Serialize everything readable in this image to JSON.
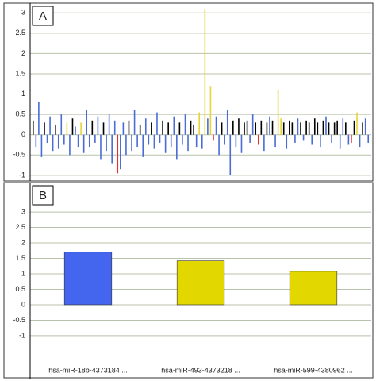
{
  "chart_data": [
    {
      "type": "bar",
      "label": "A",
      "values": [
        0.35,
        -0.3,
        0.8,
        -0.55,
        0.3,
        -0.2,
        0.45,
        -0.4,
        0.25,
        -0.35,
        0.5,
        -0.25,
        0.3,
        -0.5,
        0.4,
        0.2,
        -0.3,
        0.3,
        -0.45,
        0.6,
        -0.3,
        0.35,
        -0.2,
        0.45,
        -0.6,
        0.3,
        -0.4,
        0.5,
        -0.7,
        0.35,
        -0.95,
        -0.85,
        0.3,
        -0.5,
        0.35,
        -0.4,
        0.6,
        -0.3,
        0.25,
        -0.55,
        0.4,
        -0.25,
        0.3,
        -0.35,
        0.55,
        -0.2,
        0.35,
        -0.45,
        0.3,
        -0.3,
        0.45,
        -0.6,
        0.3,
        -0.25,
        0.5,
        -0.4,
        0.35,
        0.25,
        -0.3,
        0.55,
        -0.35,
        3.1,
        0.4,
        1.2,
        -0.15,
        0.45,
        -0.5,
        0.3,
        -0.25,
        0.6,
        -1.0,
        0.35,
        -0.3,
        0.4,
        -0.45,
        0.3,
        0.35,
        -0.2,
        0.5,
        0.3,
        -0.25,
        0.35,
        -0.4,
        0.3,
        0.45,
        0.35,
        -0.3,
        1.1,
        0.4,
        0.3,
        -0.35,
        0.35,
        0.3,
        -0.2,
        0.4,
        0.3,
        -0.15,
        0.35,
        0.3,
        -0.25,
        0.4,
        0.3,
        -0.3,
        0.35,
        0.45,
        0.3,
        -0.2,
        0.3,
        0.35,
        -0.35,
        0.4,
        0.3,
        -0.25,
        -0.2,
        0.35,
        0.55,
        -0.3,
        0.3,
        0.4,
        -0.2
      ],
      "colors": [
        "#000000",
        "#4a6cd4",
        "#4a6cd4",
        "#4a6cd4",
        "#000000",
        "#4a6cd4",
        "#4a6cd4",
        "#4a6cd4",
        "#000000",
        "#4a6cd4",
        "#4a6cd4",
        "#4a6cd4",
        "#e6d43a",
        "#4a6cd4",
        "#000000",
        "#4a6cd4",
        "#4a6cd4",
        "#e6d43a",
        "#4a6cd4",
        "#4a6cd4",
        "#4a6cd4",
        "#000000",
        "#4a6cd4",
        "#4a6cd4",
        "#4a6cd4",
        "#000000",
        "#4a6cd4",
        "#4a6cd4",
        "#4a6cd4",
        "#4a6cd4",
        "#e03030",
        "#4a6cd4",
        "#4a6cd4",
        "#4a6cd4",
        "#000000",
        "#4a6cd4",
        "#4a6cd4",
        "#4a6cd4",
        "#000000",
        "#4a6cd4",
        "#4a6cd4",
        "#4a6cd4",
        "#000000",
        "#4a6cd4",
        "#4a6cd4",
        "#4a6cd4",
        "#000000",
        "#4a6cd4",
        "#000000",
        "#4a6cd4",
        "#4a6cd4",
        "#4a6cd4",
        "#000000",
        "#4a6cd4",
        "#4a6cd4",
        "#4a6cd4",
        "#000000",
        "#000000",
        "#4a6cd4",
        "#e6d43a",
        "#4a6cd4",
        "#e6d43a",
        "#4a6cd4",
        "#e6d43a",
        "#e03030",
        "#4a6cd4",
        "#4a6cd4",
        "#000000",
        "#4a6cd4",
        "#4a6cd4",
        "#4a6cd4",
        "#000000",
        "#4a6cd4",
        "#000000",
        "#4a6cd4",
        "#000000",
        "#000000",
        "#4a6cd4",
        "#4a6cd4",
        "#000000",
        "#e03030",
        "#000000",
        "#4a6cd4",
        "#000000",
        "#4a6cd4",
        "#000000",
        "#4a6cd4",
        "#e6d43a",
        "#e6d43a",
        "#000000",
        "#4a6cd4",
        "#000000",
        "#000000",
        "#4a6cd4",
        "#4a6cd4",
        "#000000",
        "#4a6cd4",
        "#000000",
        "#000000",
        "#4a6cd4",
        "#000000",
        "#000000",
        "#4a6cd4",
        "#000000",
        "#4a6cd4",
        "#000000",
        "#4a6cd4",
        "#000000",
        "#000000",
        "#4a6cd4",
        "#4a6cd4",
        "#000000",
        "#4a6cd4",
        "#e03030",
        "#000000",
        "#e6d43a",
        "#4a6cd4",
        "#000000",
        "#4a6cd4",
        "#4a6cd4"
      ],
      "ylim": [
        -1.1,
        3.2
      ],
      "yticks": [
        -1,
        -0.5,
        0,
        0.5,
        1,
        1.5,
        2,
        2.5,
        3
      ],
      "grid": true
    },
    {
      "type": "bar",
      "label": "B",
      "categories": [
        "hsa-miR-18b-4373184 ...",
        "hsa-miR-493-4373218 ...",
        "hsa-miR-599-4380962 ..."
      ],
      "values": [
        1.7,
        1.42,
        1.08
      ],
      "colors": [
        "#4466ee",
        "#e2d800",
        "#e2d800"
      ],
      "ylim": [
        -1.9,
        3.9
      ],
      "yticks": [
        -1,
        -0.5,
        0,
        0.5,
        1,
        1.5,
        2,
        2.5,
        3
      ],
      "grid": true
    }
  ]
}
